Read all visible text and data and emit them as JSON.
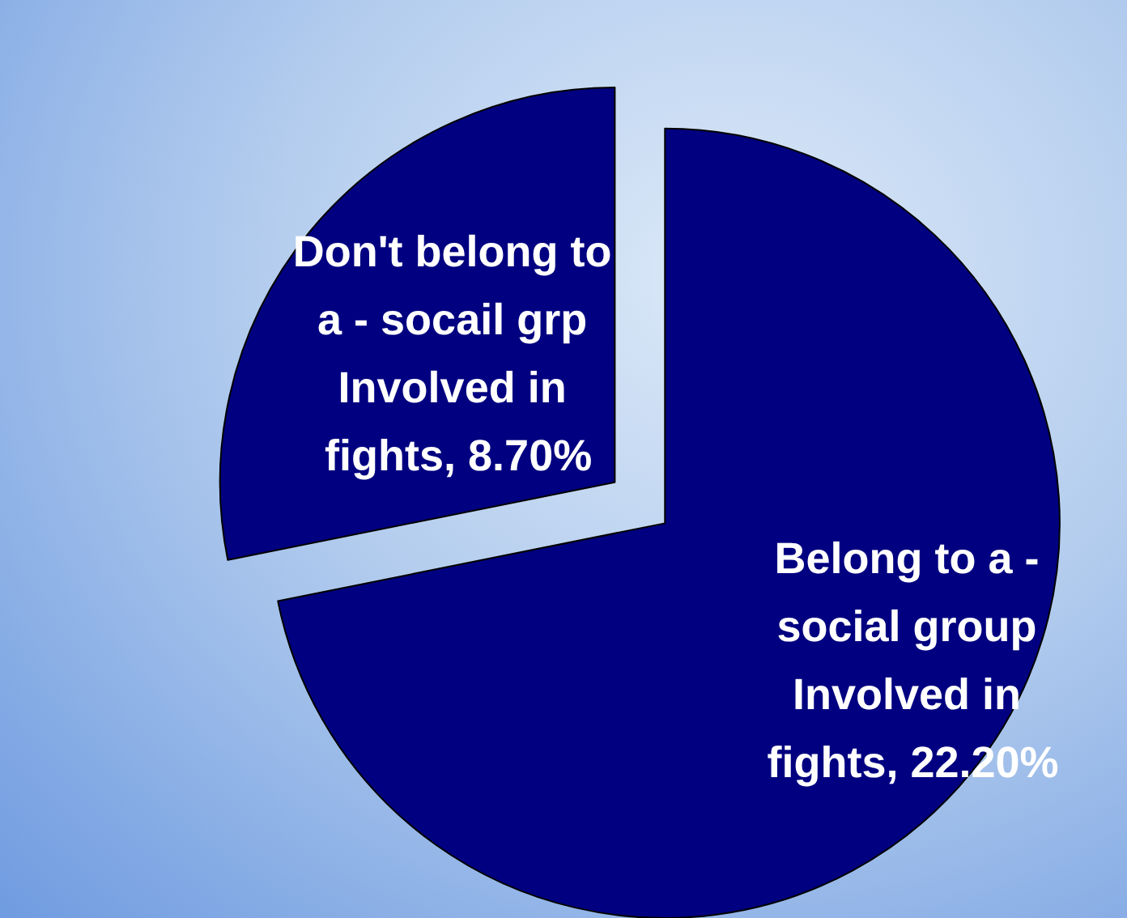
{
  "chart_data": {
    "type": "pie",
    "categories": [
      "Belong to a - social group Involved in fights",
      "Don't belong to a - socail grp Involved in fights"
    ],
    "values": [
      22.2,
      8.7
    ],
    "value_labels": [
      "22.20%",
      "8.70%"
    ],
    "colors": [
      "#000080",
      "#000080"
    ],
    "legend": false
  }
}
